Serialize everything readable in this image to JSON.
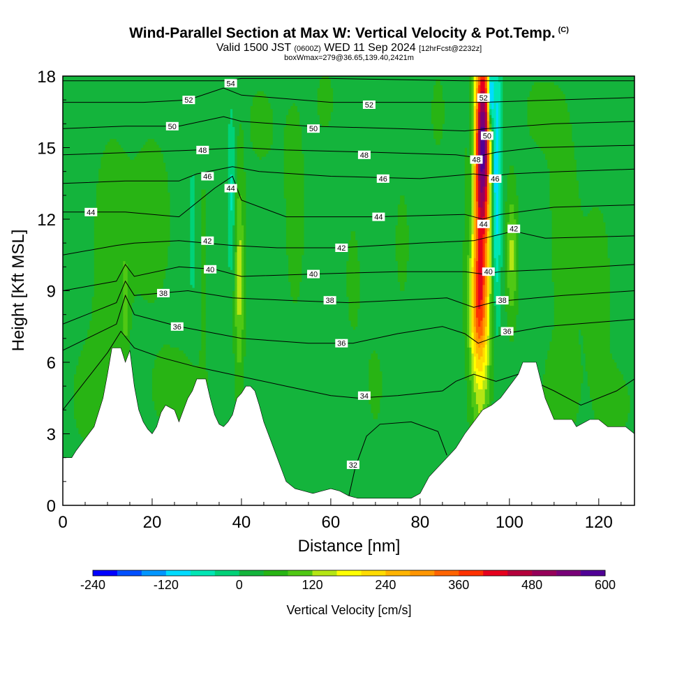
{
  "header": {
    "title": "Wind-Parallel Section at Max W: Vertical Velocity & Pot.Temp.",
    "copyright": "(C)",
    "valid_prefix": "Valid 1500 JST",
    "valid_utc": "(0600Z)",
    "valid_date": "WED 11 Sep 2024",
    "forecast": "[12hrFcst@2232z]",
    "boxline": "boxWmax=279@36.65,139.40,2421m"
  },
  "chart_data": {
    "type": "heatmap",
    "title": "Wind-Parallel Section at Max W: Vertical Velocity & Pot.Temp.",
    "xlabel": "Distance [nm]",
    "ylabel": "Height [Kft MSL]",
    "xlim": [
      0,
      128
    ],
    "ylim": [
      0,
      18
    ],
    "x_ticks": [
      0,
      20,
      40,
      60,
      80,
      100,
      120
    ],
    "y_ticks": [
      0,
      3,
      6,
      9,
      12,
      15,
      18
    ],
    "x_tick_labels": [
      "0",
      "20",
      "40",
      "60",
      "80",
      "100",
      "120"
    ],
    "y_tick_labels": [
      "0",
      "3",
      "6",
      "9",
      "12",
      "15",
      "18"
    ],
    "background_velocity": 20,
    "terrain": [
      [
        0,
        2
      ],
      [
        2,
        2
      ],
      [
        3,
        2.3
      ],
      [
        5,
        2.8
      ],
      [
        7,
        3.3
      ],
      [
        9,
        4.5
      ],
      [
        10,
        5.5
      ],
      [
        11,
        6.6
      ],
      [
        13,
        6.6
      ],
      [
        14,
        6
      ],
      [
        15,
        6.5
      ],
      [
        16,
        5
      ],
      [
        17,
        4
      ],
      [
        18,
        3.5
      ],
      [
        19,
        3.2
      ],
      [
        20,
        3
      ],
      [
        21,
        3.3
      ],
      [
        22,
        3.9
      ],
      [
        23,
        4.2
      ],
      [
        25,
        4
      ],
      [
        26,
        3.5
      ],
      [
        27,
        4
      ],
      [
        28,
        4.5
      ],
      [
        29,
        4.8
      ],
      [
        30,
        5.3
      ],
      [
        32,
        5.3
      ],
      [
        33,
        4.5
      ],
      [
        34,
        3.8
      ],
      [
        35,
        3.4
      ],
      [
        36,
        3.3
      ],
      [
        37,
        3.5
      ],
      [
        38,
        3.8
      ],
      [
        39,
        4.5
      ],
      [
        40,
        4.7
      ],
      [
        41,
        5
      ],
      [
        42,
        5
      ],
      [
        43,
        4.8
      ],
      [
        44,
        4.2
      ],
      [
        45,
        3.5
      ],
      [
        47,
        2.5
      ],
      [
        49,
        1.5
      ],
      [
        50,
        1
      ],
      [
        52,
        0.7
      ],
      [
        54,
        0.6
      ],
      [
        56,
        0.5
      ],
      [
        58,
        0.6
      ],
      [
        60,
        0.7
      ],
      [
        62,
        0.6
      ],
      [
        64,
        0.4
      ],
      [
        66,
        0.3
      ],
      [
        72,
        0.3
      ],
      [
        78,
        0.3
      ],
      [
        80,
        0.5
      ],
      [
        82,
        1.2
      ],
      [
        84,
        1.6
      ],
      [
        86,
        2
      ],
      [
        88,
        2.4
      ],
      [
        90,
        3
      ],
      [
        92,
        3.5
      ],
      [
        94,
        4
      ],
      [
        96,
        4.2
      ],
      [
        98,
        4.5
      ],
      [
        100,
        5
      ],
      [
        102,
        5.5
      ],
      [
        103,
        6
      ],
      [
        106,
        6
      ],
      [
        108,
        4.5
      ],
      [
        110,
        3.6
      ],
      [
        114,
        3.6
      ],
      [
        115,
        3.3
      ],
      [
        118,
        3.6
      ],
      [
        120,
        3.6
      ],
      [
        122,
        3.3
      ],
      [
        126,
        3.3
      ],
      [
        128,
        3
      ]
    ],
    "velocity_blobs": [
      {
        "x": 93.5,
        "y": 12.5,
        "sx": 1.6,
        "sy": 5.5,
        "w": 330
      },
      {
        "x": 94.2,
        "y": 15.5,
        "sx": 1.0,
        "sy": 2.5,
        "w": 300
      },
      {
        "x": 93.0,
        "y": 8.3,
        "sx": 1.4,
        "sy": 1.6,
        "w": 140
      },
      {
        "x": 91.5,
        "y": 14.5,
        "sx": 0.7,
        "sy": 3.5,
        "w": -90
      },
      {
        "x": 97.0,
        "y": 14,
        "sx": 0.8,
        "sy": 4,
        "w": -160
      },
      {
        "x": 95.8,
        "y": 17.2,
        "sx": 0.4,
        "sy": 0.8,
        "w": -260
      },
      {
        "x": 100.5,
        "y": 10.5,
        "sx": 0.9,
        "sy": 2,
        "w": 110
      },
      {
        "x": 39.5,
        "y": 9.5,
        "sx": 0.8,
        "sy": 3,
        "w": 120
      },
      {
        "x": 37.8,
        "y": 13,
        "sx": 0.6,
        "sy": 2.5,
        "w": -70
      },
      {
        "x": 29.0,
        "y": 11.5,
        "sx": 0.5,
        "sy": 2,
        "w": -60
      },
      {
        "x": 31.5,
        "y": 9.5,
        "sx": 0.5,
        "sy": 3,
        "w": 40
      },
      {
        "x": 14.0,
        "y": 8.5,
        "sx": 0.5,
        "sy": 1.5,
        "w": 70
      },
      {
        "x": 20,
        "y": 12,
        "sx": 6,
        "sy": 5,
        "w": 25
      },
      {
        "x": 10,
        "y": 10.5,
        "sx": 3,
        "sy": 4,
        "w": 30
      },
      {
        "x": 6,
        "y": 4.5,
        "sx": 4,
        "sy": 2,
        "w": 30
      },
      {
        "x": 27,
        "y": 4.5,
        "sx": 5,
        "sy": 1.5,
        "w": 30
      },
      {
        "x": 52,
        "y": 12.5,
        "sx": 3,
        "sy": 6,
        "w": 25
      },
      {
        "x": 65,
        "y": 9.5,
        "sx": 2,
        "sy": 3,
        "w": 25
      },
      {
        "x": 70,
        "y": 5,
        "sx": 2,
        "sy": 2,
        "w": 25
      },
      {
        "x": 76,
        "y": 11,
        "sx": 2,
        "sy": 3,
        "w": 25
      },
      {
        "x": 84,
        "y": 16.5,
        "sx": 2,
        "sy": 2,
        "w": 25
      },
      {
        "x": 112,
        "y": 12,
        "sx": 3,
        "sy": 5,
        "w": 30
      },
      {
        "x": 120,
        "y": 9,
        "sx": 3,
        "sy": 4,
        "w": 28
      },
      {
        "x": 111,
        "y": 4.5,
        "sx": 3,
        "sy": 1.5,
        "w": 35
      },
      {
        "x": 124,
        "y": 4.2,
        "sx": 3,
        "sy": 1.2,
        "w": 30
      },
      {
        "x": 44,
        "y": 16,
        "sx": 3,
        "sy": 2,
        "w": 25
      },
      {
        "x": 59,
        "y": 17,
        "sx": 2,
        "sy": 1.5,
        "w": 25
      },
      {
        "x": 106,
        "y": 16.5,
        "sx": 3,
        "sy": 1.5,
        "w": 25
      }
    ],
    "theta_contours": [
      {
        "level": 32,
        "points": [
          [
            64,
            0.35
          ],
          [
            65.5,
            1.6
          ],
          [
            68,
            2.9
          ],
          [
            71,
            3.4
          ],
          [
            78,
            3.5
          ],
          [
            84,
            3.1
          ],
          [
            86,
            2.1
          ]
        ]
      },
      {
        "level": 34,
        "points": [
          [
            0,
            4
          ],
          [
            10,
            6.4
          ],
          [
            13,
            7.3
          ],
          [
            16,
            6.6
          ],
          [
            22,
            6.2
          ],
          [
            30,
            5.8
          ],
          [
            40,
            5.4
          ],
          [
            50,
            5
          ],
          [
            60,
            4.6
          ],
          [
            66,
            4.5
          ],
          [
            75,
            4.6
          ],
          [
            85,
            4.8
          ],
          [
            88,
            5.2
          ],
          [
            92,
            5.5
          ],
          [
            97,
            5.2
          ],
          [
            102,
            5.5
          ],
          [
            110,
            4.8
          ],
          [
            116,
            4.2
          ],
          [
            124,
            4.8
          ],
          [
            128,
            5.3
          ]
        ]
      },
      {
        "level": 36,
        "points": [
          [
            0,
            6.5
          ],
          [
            12,
            7.6
          ],
          [
            14,
            8.8
          ],
          [
            16,
            8
          ],
          [
            26,
            7.5
          ],
          [
            40,
            7
          ],
          [
            55,
            6.8
          ],
          [
            65,
            6.8
          ],
          [
            75,
            7.2
          ],
          [
            85,
            7.5
          ],
          [
            90,
            7.2
          ],
          [
            93,
            6.8
          ],
          [
            96,
            7
          ],
          [
            99,
            7.2
          ],
          [
            108,
            7.5
          ],
          [
            128,
            7.8
          ]
        ]
      },
      {
        "level": 38,
        "points": [
          [
            0,
            7.6
          ],
          [
            12,
            8.5
          ],
          [
            14,
            9.4
          ],
          [
            16,
            8.8
          ],
          [
            28,
            9
          ],
          [
            38,
            8.7
          ],
          [
            50,
            8.6
          ],
          [
            64,
            8.5
          ],
          [
            75,
            8.6
          ],
          [
            86,
            8.7
          ],
          [
            92,
            8.3
          ],
          [
            96,
            8.5
          ],
          [
            100,
            8.6
          ],
          [
            112,
            8.8
          ],
          [
            128,
            9
          ]
        ]
      },
      {
        "level": 40,
        "points": [
          [
            0,
            9
          ],
          [
            12,
            9.4
          ],
          [
            14,
            10.1
          ],
          [
            16,
            9.6
          ],
          [
            26,
            10
          ],
          [
            34,
            9.9
          ],
          [
            40,
            9.6
          ],
          [
            56,
            9.7
          ],
          [
            75,
            9.8
          ],
          [
            90,
            9.8
          ],
          [
            94,
            9.7
          ],
          [
            98,
            9.8
          ],
          [
            110,
            9.9
          ],
          [
            128,
            10.1
          ]
        ]
      },
      {
        "level": 42,
        "points": [
          [
            0,
            10.5
          ],
          [
            12,
            10.9
          ],
          [
            16,
            11
          ],
          [
            26,
            11.1
          ],
          [
            32,
            11
          ],
          [
            38,
            10.9
          ],
          [
            48,
            10.8
          ],
          [
            62,
            10.8
          ],
          [
            80,
            11
          ],
          [
            92,
            11.1
          ],
          [
            101,
            11.5
          ],
          [
            108,
            11.2
          ],
          [
            128,
            11.3
          ]
        ]
      },
      {
        "level": 44,
        "points": [
          [
            0,
            12.3
          ],
          [
            14,
            12.3
          ],
          [
            26,
            12.1
          ],
          [
            34,
            13.3
          ],
          [
            38,
            13.8
          ],
          [
            40,
            12.8
          ],
          [
            50,
            12.1
          ],
          [
            70,
            12.1
          ],
          [
            90,
            12.2
          ],
          [
            94,
            12
          ],
          [
            98,
            12.2
          ],
          [
            110,
            12.5
          ],
          [
            128,
            12.6
          ]
        ]
      },
      {
        "level": 46,
        "points": [
          [
            0,
            13.5
          ],
          [
            14,
            13.6
          ],
          [
            26,
            13.6
          ],
          [
            30,
            13.9
          ],
          [
            38,
            14.2
          ],
          [
            44,
            14
          ],
          [
            60,
            13.8
          ],
          [
            80,
            13.7
          ],
          [
            92,
            13.9
          ],
          [
            96,
            13.8
          ],
          [
            100,
            13.9
          ],
          [
            112,
            14
          ],
          [
            128,
            14.1
          ]
        ]
      },
      {
        "level": 48,
        "points": [
          [
            0,
            14.7
          ],
          [
            16,
            14.8
          ],
          [
            30,
            14.9
          ],
          [
            40,
            15
          ],
          [
            50,
            14.9
          ],
          [
            70,
            14.8
          ],
          [
            88,
            14.7
          ],
          [
            92,
            14.6
          ],
          [
            97,
            14.8
          ],
          [
            106,
            15
          ],
          [
            128,
            15.1
          ]
        ]
      },
      {
        "level": 50,
        "points": [
          [
            0,
            15.8
          ],
          [
            14,
            15.9
          ],
          [
            26,
            15.9
          ],
          [
            36,
            16.3
          ],
          [
            40,
            16.1
          ],
          [
            55,
            15.9
          ],
          [
            75,
            15.8
          ],
          [
            90,
            15.7
          ],
          [
            95,
            15.8
          ],
          [
            110,
            16
          ],
          [
            128,
            16.1
          ]
        ]
      },
      {
        "level": 52,
        "points": [
          [
            0,
            16.9
          ],
          [
            18,
            16.9
          ],
          [
            28,
            17
          ],
          [
            36,
            17.5
          ],
          [
            40,
            17.2
          ],
          [
            60,
            16.9
          ],
          [
            80,
            16.9
          ],
          [
            94,
            16.9
          ],
          [
            110,
            17
          ],
          [
            128,
            17.1
          ]
        ]
      },
      {
        "level": 54,
        "points": [
          [
            0,
            17.8
          ],
          [
            20,
            17.8
          ],
          [
            36,
            17.8
          ],
          [
            40,
            17.9
          ],
          [
            60,
            17.9
          ],
          [
            90,
            17.8
          ],
          [
            128,
            17.8
          ]
        ]
      }
    ],
    "contour_labels": [
      {
        "text": "54",
        "x": 37.6,
        "y": 17.7
      },
      {
        "text": "52",
        "x": 28.2,
        "y": 17.0
      },
      {
        "text": "52",
        "x": 68.6,
        "y": 16.8
      },
      {
        "text": "52",
        "x": 94.2,
        "y": 17.1
      },
      {
        "text": "50",
        "x": 24.5,
        "y": 15.9
      },
      {
        "text": "50",
        "x": 56.1,
        "y": 15.8
      },
      {
        "text": "50",
        "x": 95.0,
        "y": 15.5
      },
      {
        "text": "48",
        "x": 31.3,
        "y": 14.9
      },
      {
        "text": "48",
        "x": 67.5,
        "y": 14.7
      },
      {
        "text": "48",
        "x": 92.6,
        "y": 14.5
      },
      {
        "text": "46",
        "x": 32.4,
        "y": 13.8
      },
      {
        "text": "46",
        "x": 71.7,
        "y": 13.7
      },
      {
        "text": "46",
        "x": 96.8,
        "y": 13.7
      },
      {
        "text": "44",
        "x": 6.3,
        "y": 12.3
      },
      {
        "text": "44",
        "x": 37.6,
        "y": 13.3
      },
      {
        "text": "44",
        "x": 70.7,
        "y": 12.1
      },
      {
        "text": "44",
        "x": 94.2,
        "y": 11.8
      },
      {
        "text": "42",
        "x": 32.4,
        "y": 11.1
      },
      {
        "text": "42",
        "x": 62.4,
        "y": 10.8
      },
      {
        "text": "42",
        "x": 101.0,
        "y": 11.6
      },
      {
        "text": "40",
        "x": 33.0,
        "y": 9.9
      },
      {
        "text": "40",
        "x": 56.1,
        "y": 9.7
      },
      {
        "text": "40",
        "x": 95.3,
        "y": 9.8
      },
      {
        "text": "38",
        "x": 22.5,
        "y": 8.9
      },
      {
        "text": "38",
        "x": 59.8,
        "y": 8.6
      },
      {
        "text": "38",
        "x": 98.4,
        "y": 8.6
      },
      {
        "text": "36",
        "x": 25.6,
        "y": 7.5
      },
      {
        "text": "36",
        "x": 62.4,
        "y": 6.8
      },
      {
        "text": "36",
        "x": 99.5,
        "y": 7.3
      },
      {
        "text": "34",
        "x": 67.5,
        "y": 4.6
      },
      {
        "text": "32",
        "x": 65.0,
        "y": 1.7
      }
    ],
    "colorbar": {
      "label": "Vertical Velocity [cm/s]",
      "min": -240,
      "max": 600,
      "step": 40,
      "tick_values": [
        -240,
        -120,
        0,
        120,
        240,
        360,
        480,
        600
      ],
      "tick_labels": [
        "-240",
        "-120",
        "0",
        "120",
        "240",
        "360",
        "480",
        "600"
      ],
      "colors": [
        "#0000ff",
        "#0050ff",
        "#0096ff",
        "#00dcff",
        "#00e6b4",
        "#00d278",
        "#14b43c",
        "#28b414",
        "#50c814",
        "#b4e614",
        "#ffff00",
        "#ffdc00",
        "#ffb400",
        "#ff9600",
        "#ff6400",
        "#ff3200",
        "#e6001e",
        "#b4003c",
        "#96005a",
        "#780078",
        "#500096"
      ]
    }
  },
  "colors": {
    "terrain": "#ffffff",
    "contour": "#000000",
    "axis": "#000000"
  }
}
